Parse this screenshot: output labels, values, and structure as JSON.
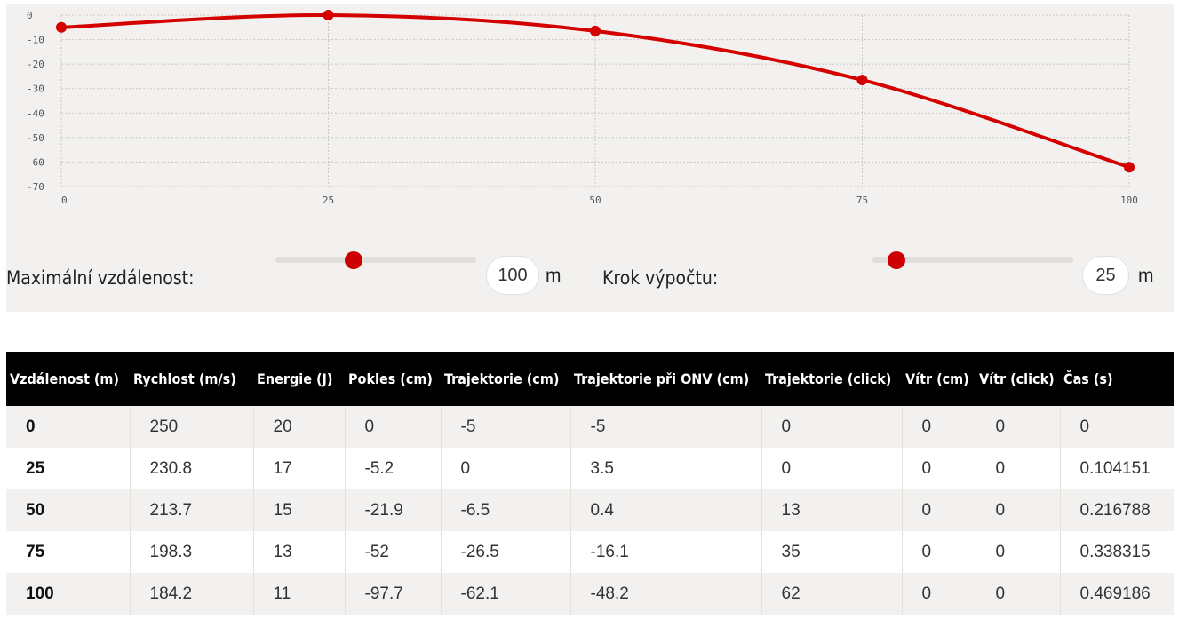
{
  "chart_data": {
    "type": "line",
    "x": [
      0,
      25,
      50,
      75,
      100
    ],
    "values": [
      -5,
      0,
      -6.5,
      -26.5,
      -62.1
    ],
    "xticks": [
      "0",
      "25",
      "50",
      "75",
      "100"
    ],
    "yticks": [
      "0",
      "-10",
      "-20",
      "-30",
      "-40",
      "-50",
      "-60",
      "-70"
    ],
    "xlim": [
      0,
      100
    ],
    "ylim": [
      -70,
      0
    ],
    "grid": true,
    "line_color": "#d40000"
  },
  "controls": {
    "max_distance_label": "Maximální vzdálenost:",
    "max_distance_value": "100",
    "max_distance_unit": "m",
    "max_distance_slider": 0.39,
    "step_label": "Krok výpočtu:",
    "step_value": "25",
    "step_unit": "m",
    "step_slider": 0.12
  },
  "table": {
    "headers": [
      "Vzdálenost (m)",
      "Rychlost (m/s)",
      "Energie (J)",
      "Pokles (cm)",
      "Trajektorie (cm)",
      "Trajektorie při ONV (cm)",
      "Trajektorie (click)",
      "Vítr (cm)",
      "Vítr (click)",
      "Čas (s)"
    ],
    "rows": [
      [
        "0",
        "250",
        "20",
        "0",
        "-5",
        "-5",
        "0",
        "0",
        "0",
        "0"
      ],
      [
        "25",
        "230.8",
        "17",
        "-5.2",
        "0",
        "3.5",
        "0",
        "0",
        "0",
        "0.104151"
      ],
      [
        "50",
        "213.7",
        "15",
        "-21.9",
        "-6.5",
        "0.4",
        "13",
        "0",
        "0",
        "0.216788"
      ],
      [
        "75",
        "198.3",
        "13",
        "-52",
        "-26.5",
        "-16.1",
        "35",
        "0",
        "0",
        "0.338315"
      ],
      [
        "100",
        "184.2",
        "11",
        "-97.7",
        "-62.1",
        "-48.2",
        "62",
        "0",
        "0",
        "0.469186"
      ]
    ]
  },
  "colors": {
    "accent": "#cc0000",
    "header_bg": "#000000",
    "panel_bg": "#f2f1f0"
  }
}
